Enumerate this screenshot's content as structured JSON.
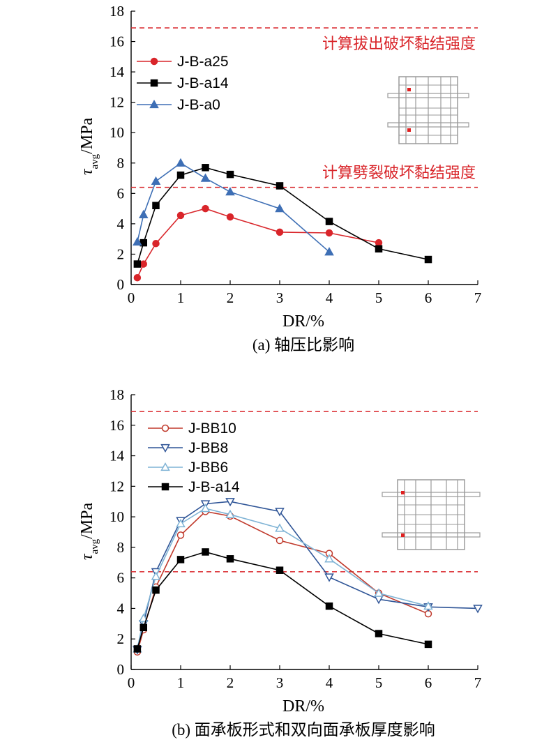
{
  "chart_data": [
    {
      "type": "line",
      "ylabel_main": "τ",
      "ylabel_sub": "avg",
      "ylabel_unit": "/MPa",
      "xlabel": "DR/%",
      "caption": "(a) 轴压比影响",
      "xlim": [
        0,
        7
      ],
      "ylim": [
        0,
        18
      ],
      "xticks": [
        0,
        1,
        2,
        3,
        4,
        5,
        6,
        7
      ],
      "yticks": [
        0,
        2,
        4,
        6,
        8,
        10,
        12,
        14,
        16,
        18
      ],
      "grid": false,
      "legend_position": "top-left",
      "ref_lines": [
        {
          "y": 16.9,
          "label": "计算拔出破坏黏结强度",
          "color": "#d9252a"
        },
        {
          "y": 6.4,
          "label": "计算劈裂破坏黏结强度",
          "color": "#d9252a"
        }
      ],
      "series": [
        {
          "name": "J-B-a25",
          "color": "#d9252a",
          "marker": "circle-filled",
          "x": [
            0.125,
            0.25,
            0.5,
            1,
            1.5,
            2,
            3,
            4,
            5
          ],
          "y": [
            0.45,
            1.35,
            2.7,
            4.55,
            5.0,
            4.45,
            3.45,
            3.4,
            2.75
          ]
        },
        {
          "name": "J-B-a14",
          "color": "#000000",
          "marker": "square-filled",
          "x": [
            0.125,
            0.25,
            0.5,
            1,
            1.5,
            2,
            3,
            4,
            5,
            6
          ],
          "y": [
            1.35,
            2.75,
            5.2,
            7.2,
            7.7,
            7.25,
            6.5,
            4.15,
            2.35,
            1.65
          ]
        },
        {
          "name": "J-B-a0",
          "color": "#3e6fb5",
          "marker": "triangle-up-filled",
          "x": [
            0.125,
            0.25,
            0.5,
            1,
            1.5,
            2,
            3,
            4
          ],
          "y": [
            2.8,
            4.6,
            6.8,
            8.0,
            7.0,
            6.1,
            5.0,
            2.15
          ]
        }
      ]
    },
    {
      "type": "line",
      "ylabel_main": "τ",
      "ylabel_sub": "avg",
      "ylabel_unit": "/MPa",
      "xlabel": "DR/%",
      "caption": "(b) 面承板形式和双向面承板厚度影响",
      "xlim": [
        0,
        7
      ],
      "ylim": [
        0,
        18
      ],
      "xticks": [
        0,
        1,
        2,
        3,
        4,
        5,
        6,
        7
      ],
      "yticks": [
        0,
        2,
        4,
        6,
        8,
        10,
        12,
        14,
        16,
        18
      ],
      "grid": false,
      "legend_position": "top-left",
      "ref_lines": [
        {
          "y": 16.9,
          "label": "",
          "color": "#d9252a"
        },
        {
          "y": 6.4,
          "label": "",
          "color": "#d9252a"
        }
      ],
      "series": [
        {
          "name": "J-BB10",
          "color": "#c0392b",
          "marker": "circle-open",
          "x": [
            0.125,
            0.25,
            0.5,
            1,
            1.5,
            2,
            3,
            4,
            5,
            6
          ],
          "y": [
            1.15,
            2.6,
            5.4,
            8.8,
            10.35,
            10.05,
            8.45,
            7.6,
            5.0,
            3.65
          ]
        },
        {
          "name": "J-BB8",
          "color": "#2f5597",
          "marker": "triangle-down-open",
          "x": [
            0.125,
            0.25,
            0.5,
            1,
            1.5,
            2,
            3,
            4,
            5,
            6,
            7
          ],
          "y": [
            1.3,
            3.0,
            6.4,
            9.75,
            10.85,
            11.0,
            10.35,
            6.05,
            4.6,
            4.1,
            4.0
          ]
        },
        {
          "name": "J-BB6",
          "color": "#7fb3d5",
          "marker": "triangle-up-open",
          "x": [
            0.125,
            0.25,
            0.5,
            1,
            1.5,
            2,
            3,
            4,
            5,
            6
          ],
          "y": [
            1.35,
            3.35,
            6.1,
            9.55,
            10.55,
            10.15,
            9.25,
            7.25,
            5.0,
            4.15
          ]
        },
        {
          "name": "J-B-a14",
          "color": "#000000",
          "marker": "square-filled",
          "x": [
            0.125,
            0.25,
            0.5,
            1,
            1.5,
            2,
            3,
            4,
            5,
            6
          ],
          "y": [
            1.35,
            2.75,
            5.2,
            7.2,
            7.7,
            7.25,
            6.5,
            4.15,
            2.35,
            1.65
          ]
        }
      ]
    }
  ]
}
